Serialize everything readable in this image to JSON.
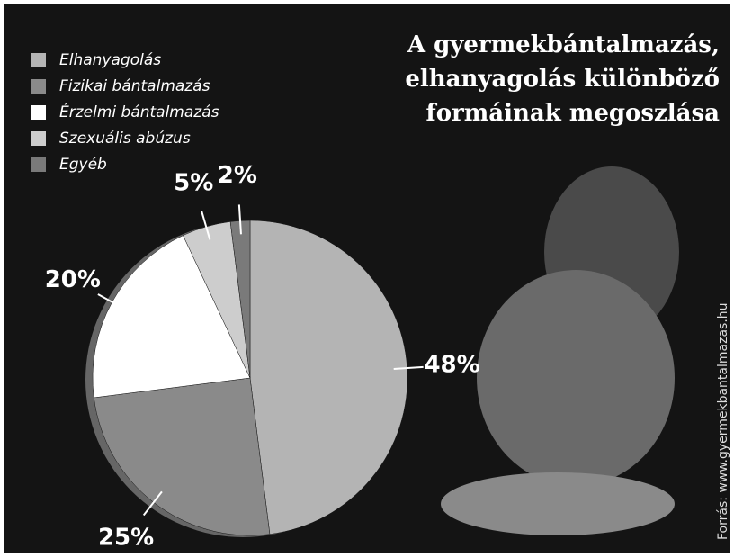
{
  "chart_data": {
    "type": "pie",
    "title": [
      "A gyermekbántalmazás,",
      "elhanyagolás különböző",
      "formáinak megoszlása"
    ],
    "categories": [
      "Elhanyagolás",
      "Fizikai bántalmazás",
      "Érzelmi bántalmazás",
      "Szexuális abúzus",
      "Egyéb"
    ],
    "values": [
      48,
      25,
      20,
      5,
      2
    ],
    "value_labels": [
      "48%",
      "25%",
      "20%",
      "5%",
      "2%"
    ],
    "colors": [
      "#b4b4b4",
      "#8a8a8a",
      "#ffffff",
      "#cdcdcd",
      "#7a7a7a"
    ],
    "source": "Forrás: www.gyermekbantalmazas.hu"
  }
}
